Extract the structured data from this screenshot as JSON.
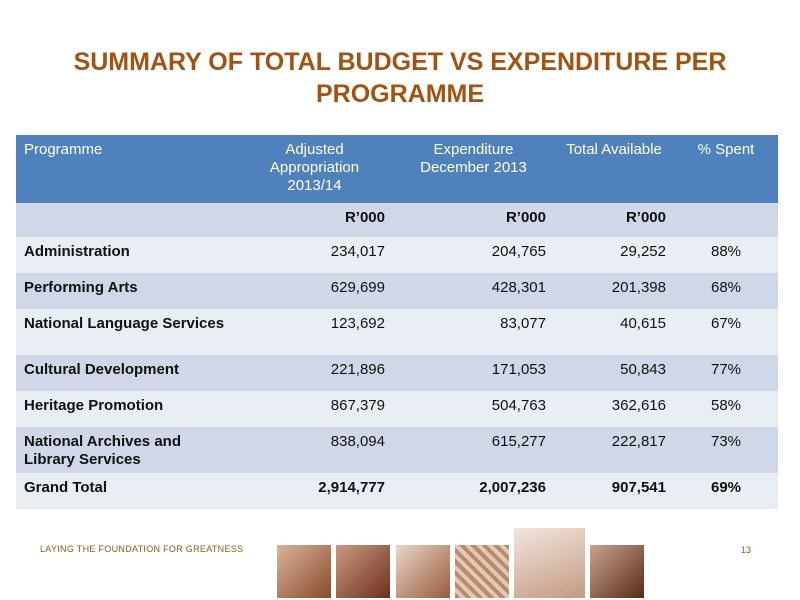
{
  "header": {
    "title": "SUMMARY OF TOTAL BUDGET VS EXPENDITURE PER PROGRAMME"
  },
  "table": {
    "columns": [
      "Programme",
      "Adjusted Appropriation 2013/14",
      "Expenditure December 2013",
      "Total Available",
      "% Spent"
    ],
    "units": [
      "",
      "R’000",
      "R’000",
      "R’000",
      ""
    ],
    "rows": [
      [
        "Administration",
        "234,017",
        "204,765",
        "29,252",
        "88%"
      ],
      [
        "Performing Arts",
        "629,699",
        "428,301",
        "201,398",
        "68%"
      ],
      [
        "National Language Services",
        "123,692",
        "83,077",
        "40,615",
        "67%"
      ],
      [
        "Cultural Development",
        "221,896",
        "171,053",
        "50,843",
        "77%"
      ],
      [
        "Heritage Promotion",
        "867,379",
        "504,763",
        "362,616",
        "58%"
      ],
      [
        "National  Archives and Library Services",
        "838,094",
        "615,277",
        "222,817",
        "73%"
      ],
      [
        "Grand Total",
        "2,914,777",
        "2,007,236",
        "907,541",
        "69%"
      ]
    ]
  },
  "footer": {
    "tagline": "LAYING THE FOUNDATION FOR GREATNESS",
    "page_number": "13"
  }
}
